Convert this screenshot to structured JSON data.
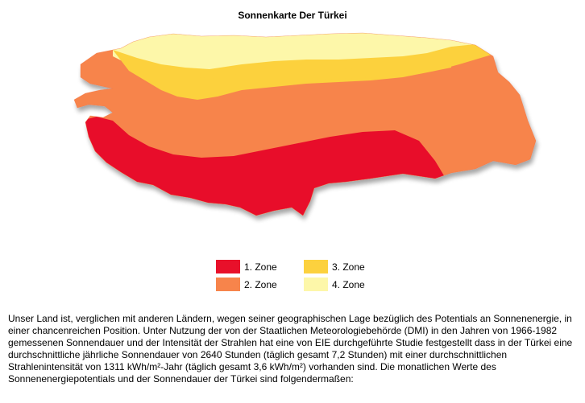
{
  "title": "Sonnenkarte Der Türkei",
  "colors": {
    "zone1": "#e8102a",
    "zone2": "#f7844b",
    "zone3": "#fcd13e",
    "zone4": "#fdf7a9",
    "background": "#ffffff"
  },
  "legend": [
    {
      "label": "1. Zone",
      "color": "#e8102a"
    },
    {
      "label": "2. Zone",
      "color": "#f7844b"
    },
    {
      "label": "3. Zone",
      "color": "#fcd13e"
    },
    {
      "label": "4. Zone",
      "color": "#fdf7a9"
    }
  ],
  "description": "Unser Land ist, verglichen mit anderen Ländern, wegen seiner geographischen Lage bezüglich des Potentials an Sonnenenergie, in einer chancenreichen Position. Unter Nutzung der von der Staatlichen Meteorologiebehörde (DMI) in den Jahren von 1966-1982 gemessenen Sonnendauer und der Intensität der Strahlen hat eine von EIE durchgeführte Studie festgestellt dass in der Türkei eine durchschnittliche jährliche Sonnendauer von 2640 Stunden (täglich gesamt 7,2 Stunden) mit einer durchschnittlichen Strahlenintensität von 1311 kWh/m²-Jahr (täglich gesamt 3,6 kWh/m²) vorhanden sind. Die monatlichen Werte des Sonnenenergiepotentials und der Sonnendauer der Türkei sind folgendermaßen:"
}
